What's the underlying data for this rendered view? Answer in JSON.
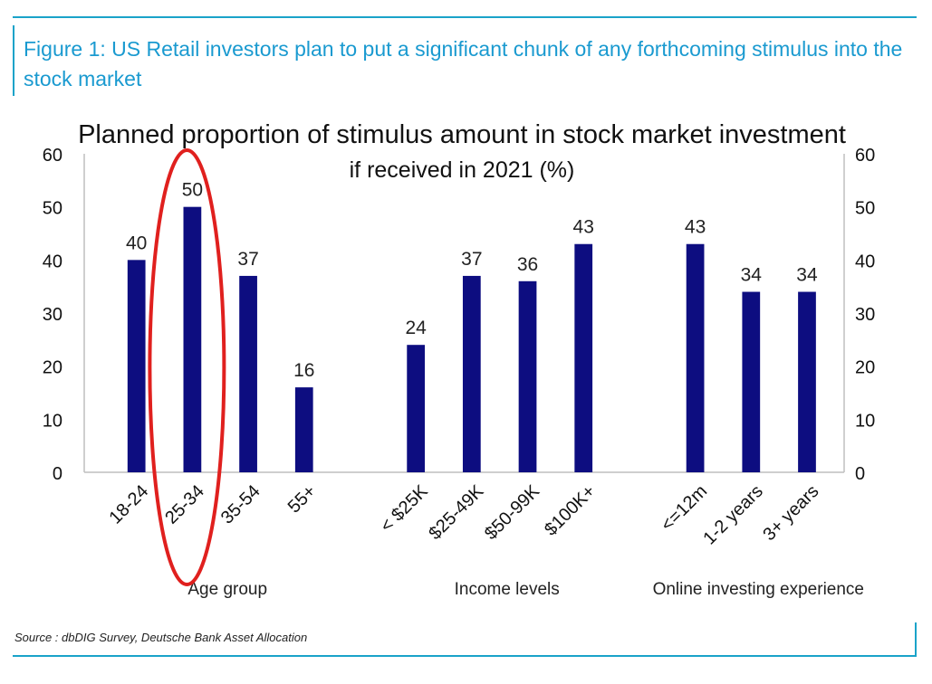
{
  "figure": {
    "title": "Figure 1: US Retail investors plan to put a significant chunk of any forthcoming stimulus into the stock market",
    "source": "Source : dbDIG Survey, Deutsche Bank Asset Allocation"
  },
  "colors": {
    "bar": "#0d0d80",
    "accent": "#1a9ad0",
    "highlight": "#e0201e",
    "axis": "#bfbfbf"
  },
  "chart_data": {
    "type": "bar",
    "title": "Planned proportion of stimulus amount in stock market investment",
    "subtitle": "if received in 2021 (%)",
    "ylim": [
      0,
      60
    ],
    "yticks": [
      "0",
      "10",
      "20",
      "30",
      "40",
      "50",
      "60"
    ],
    "secondary_axis": true,
    "grid": false,
    "legend": "none",
    "groups": [
      {
        "name": "Age group",
        "categories": [
          "18-24",
          "25-34",
          "35-54",
          "55+"
        ],
        "values": [
          40,
          50,
          37,
          16
        ],
        "labels": [
          "40",
          "50",
          "37",
          "16"
        ]
      },
      {
        "name": "Income levels",
        "categories": [
          "< $25K",
          "$25-49K",
          "$50-99K",
          "$100K+"
        ],
        "values": [
          24,
          37,
          36,
          43
        ],
        "labels": [
          "24",
          "37",
          "36",
          "43"
        ]
      },
      {
        "name": "Online investing experience",
        "categories": [
          "<=12m",
          "1-2 years",
          "3+ years"
        ],
        "values": [
          43,
          34,
          34
        ],
        "labels": [
          "43",
          "34",
          "34"
        ]
      }
    ],
    "highlight": {
      "category": "25-34",
      "shape": "ellipse"
    }
  }
}
